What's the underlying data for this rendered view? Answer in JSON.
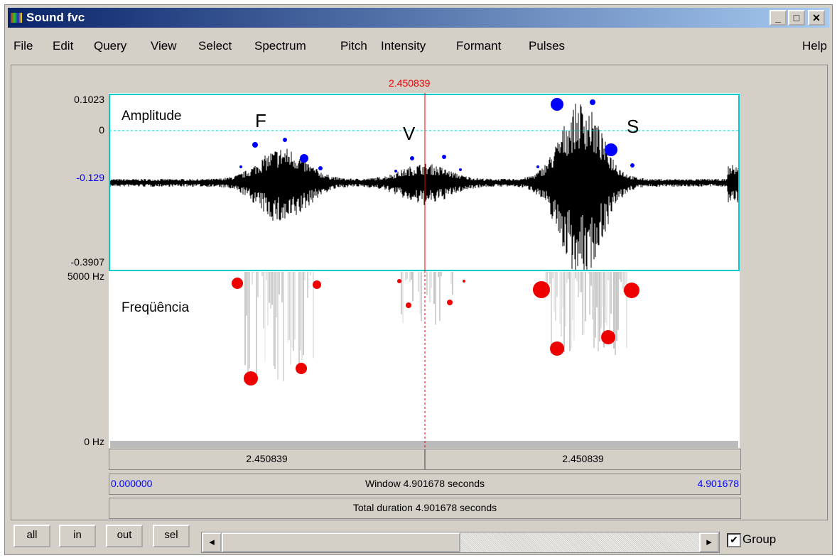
{
  "window": {
    "title": "Sound fvc",
    "menu": [
      "File",
      "Edit",
      "Query",
      "View",
      "Select",
      "Spectrum",
      "Pitch",
      "Intensity",
      "Formant",
      "Pulses"
    ],
    "help": "Help"
  },
  "editor": {
    "cursor_time": "2.450839",
    "amplitude_axis": [
      "0.1023",
      "0",
      "-0.129",
      "-0.3907"
    ],
    "frequency_axis": [
      "5000 Hz",
      "0 Hz"
    ],
    "annotations": {
      "amplitude": "Amplitude",
      "frequency": "Freqüência",
      "f": "F",
      "v": "V",
      "s": "S"
    },
    "selection_left": "2.450839",
    "selection_right": "2.450839",
    "window_start": "0.000000",
    "window_label": "Window 4.901678 seconds",
    "window_end": "4.901678",
    "total_duration": "Total duration 4.901678 seconds"
  },
  "controls": {
    "buttons": [
      "all",
      "in",
      "out",
      "sel"
    ],
    "group": "Group"
  }
}
